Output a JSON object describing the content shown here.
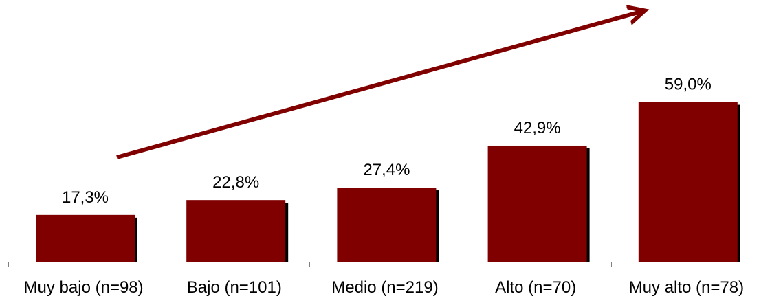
{
  "chart_data": {
    "type": "bar",
    "categories": [
      "Muy bajo (n=98)",
      "Bajo (n=101)",
      "Medio (n=219)",
      "Alto (n=70)",
      "Muy alto (n=78)"
    ],
    "values": [
      17.3,
      22.8,
      27.4,
      42.9,
      59.0
    ],
    "value_labels": [
      "17,3%",
      "22,8%",
      "27,4%",
      "42,9%",
      "59,0%"
    ],
    "title": "",
    "xlabel": "",
    "ylabel": "",
    "ylim": [
      0,
      75
    ],
    "grid": false,
    "legend": "none",
    "annotations": [
      {
        "type": "trend-arrow",
        "direction": "increasing"
      }
    ],
    "colors": {
      "bar": "#800000",
      "bar_shadow": "#000000",
      "arrow": "#800000",
      "axis": "#808080"
    }
  }
}
